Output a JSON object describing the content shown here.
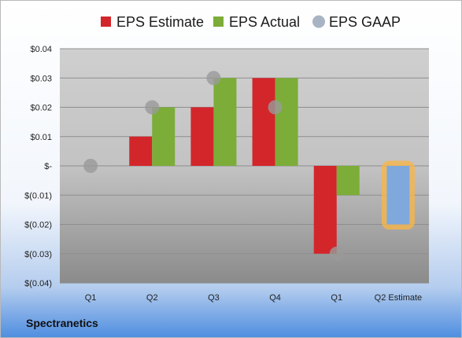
{
  "footer": {
    "company": "Spectranetics"
  },
  "chart_data": {
    "type": "bar",
    "categories": [
      "Q1",
      "Q2",
      "Q3",
      "Q4",
      "Q1",
      "Q2 Estimate"
    ],
    "series": [
      {
        "name": "EPS Estimate",
        "color": "#d3262b",
        "values": [
          0,
          0.01,
          0.02,
          0.03,
          -0.03,
          null
        ]
      },
      {
        "name": "EPS Actual",
        "color": "#7cad38",
        "values": [
          0,
          0.02,
          0.03,
          0.03,
          -0.01,
          null
        ]
      },
      {
        "name": "EPS GAAP",
        "color": "#9a9a9a",
        "kind": "marker",
        "values": [
          0,
          0.02,
          0.03,
          0.02,
          -0.03,
          null
        ]
      }
    ],
    "forecast": {
      "category": "Q2 Estimate",
      "value": -0.02,
      "fill": "#7fa9dd",
      "halo": "#f7b54a"
    },
    "yticks": [
      {
        "value": 0.04,
        "label": "$0.04"
      },
      {
        "value": 0.03,
        "label": "$0.03"
      },
      {
        "value": 0.02,
        "label": "$0.02"
      },
      {
        "value": 0.01,
        "label": "$0.01"
      },
      {
        "value": 0,
        "label": "$-"
      },
      {
        "value": -0.01,
        "label": "$(0.01)"
      },
      {
        "value": -0.02,
        "label": "$(0.02)"
      },
      {
        "value": -0.03,
        "label": "$(0.03)"
      },
      {
        "value": -0.04,
        "label": "$(0.04)"
      }
    ],
    "ylim": [
      -0.04,
      0.04
    ],
    "grid": true,
    "legend_position": "top"
  }
}
